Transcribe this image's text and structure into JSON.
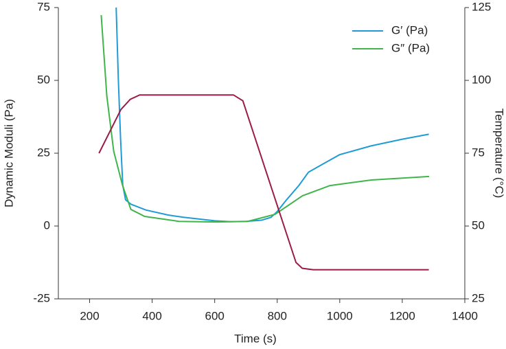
{
  "chart_data": {
    "type": "line",
    "x_label": "Time (s)",
    "y_label": "Dynamic Moduli (Pa)",
    "y2_label": "Temperature (°C)",
    "xlim": [
      100,
      1400
    ],
    "xticks": [
      200,
      400,
      600,
      800,
      1000,
      1200,
      1400
    ],
    "ylim": [
      -25,
      75
    ],
    "yticks": [
      -25,
      0,
      25,
      50,
      75
    ],
    "y2lim": [
      25,
      125
    ],
    "y2ticks": [
      25,
      50,
      75,
      100,
      125
    ],
    "legend": "upper right",
    "series": [
      {
        "name": "G′ (Pa)",
        "color": "#1e9bd7",
        "x": [
          285,
          292,
          299,
          306,
          315,
          332,
          380,
          450,
          500,
          600,
          650,
          700,
          750,
          780,
          800,
          830,
          870,
          900,
          950,
          1000,
          1100,
          1200,
          1285
        ],
        "values": [
          75,
          50,
          30,
          14,
          9,
          7.5,
          5.5,
          3.8,
          3,
          1.8,
          1.5,
          1.6,
          2,
          3,
          5,
          9,
          14,
          18.5,
          21.5,
          24.5,
          27.5,
          29.8,
          31.5
        ]
      },
      {
        "name": "G″ (Pa)",
        "color": "#3db54a",
        "x": [
          237,
          255,
          277,
          305,
          332,
          376,
          486,
          602,
          706,
          793,
          881,
          969,
          1101,
          1286
        ],
        "values": [
          72.4,
          44.6,
          25.7,
          14,
          5.7,
          3.3,
          1.6,
          1.4,
          1.6,
          4,
          10.4,
          13.9,
          15.8,
          17
        ]
      },
      {
        "color": "#9b1b45",
        "axis": "y2",
        "x": [
          230,
          300,
          330,
          360,
          660,
          690,
          860,
          880,
          915,
          1285
        ],
        "values": [
          75,
          90,
          93.5,
          95,
          95,
          93,
          37.5,
          35.5,
          35,
          35
        ]
      }
    ]
  }
}
